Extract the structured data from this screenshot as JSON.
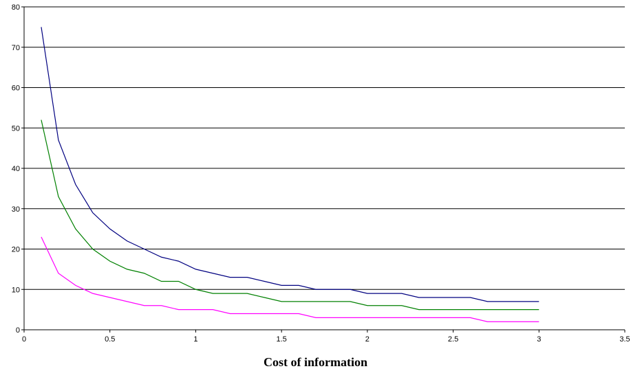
{
  "chart_data": {
    "type": "line",
    "title": "",
    "xlabel": "Cost of information",
    "ylabel": "",
    "xlim": [
      0,
      3.5
    ],
    "ylim": [
      0,
      80
    ],
    "x_ticks": [
      "0",
      "0.5",
      "1",
      "1.5",
      "2",
      "2.5",
      "3",
      "3.5"
    ],
    "y_ticks": [
      "0",
      "10",
      "20",
      "30",
      "40",
      "50",
      "60",
      "70",
      "80"
    ],
    "grid": "horizontal",
    "legend": "none",
    "x": [
      0.1,
      0.2,
      0.3,
      0.4,
      0.5,
      0.6,
      0.7,
      0.8,
      0.9,
      1.0,
      1.1,
      1.2,
      1.3,
      1.4,
      1.5,
      1.6,
      1.7,
      1.8,
      1.9,
      2.0,
      2.1,
      2.2,
      2.3,
      2.4,
      2.5,
      2.6,
      2.7,
      2.8,
      2.9,
      3.0
    ],
    "series": [
      {
        "color": "#000080",
        "values": [
          75,
          47,
          36,
          29,
          25,
          22,
          20,
          18,
          17,
          15,
          14,
          13,
          13,
          12,
          11,
          11,
          10,
          10,
          10,
          9,
          9,
          9,
          8,
          8,
          8,
          8,
          7,
          7,
          7,
          7
        ]
      },
      {
        "color": "#008000",
        "values": [
          52,
          33,
          25,
          20,
          17,
          15,
          14,
          12,
          12,
          10,
          9,
          9,
          9,
          8,
          7,
          7,
          7,
          7,
          7,
          6,
          6,
          6,
          5,
          5,
          5,
          5,
          5,
          5,
          5,
          5
        ]
      },
      {
        "color": "#ff00ff",
        "values": [
          23,
          14,
          11,
          9,
          8,
          7,
          6,
          6,
          5,
          5,
          5,
          4,
          4,
          4,
          4,
          4,
          3,
          3,
          3,
          3,
          3,
          3,
          3,
          3,
          3,
          3,
          2,
          2,
          2,
          2
        ]
      }
    ]
  }
}
